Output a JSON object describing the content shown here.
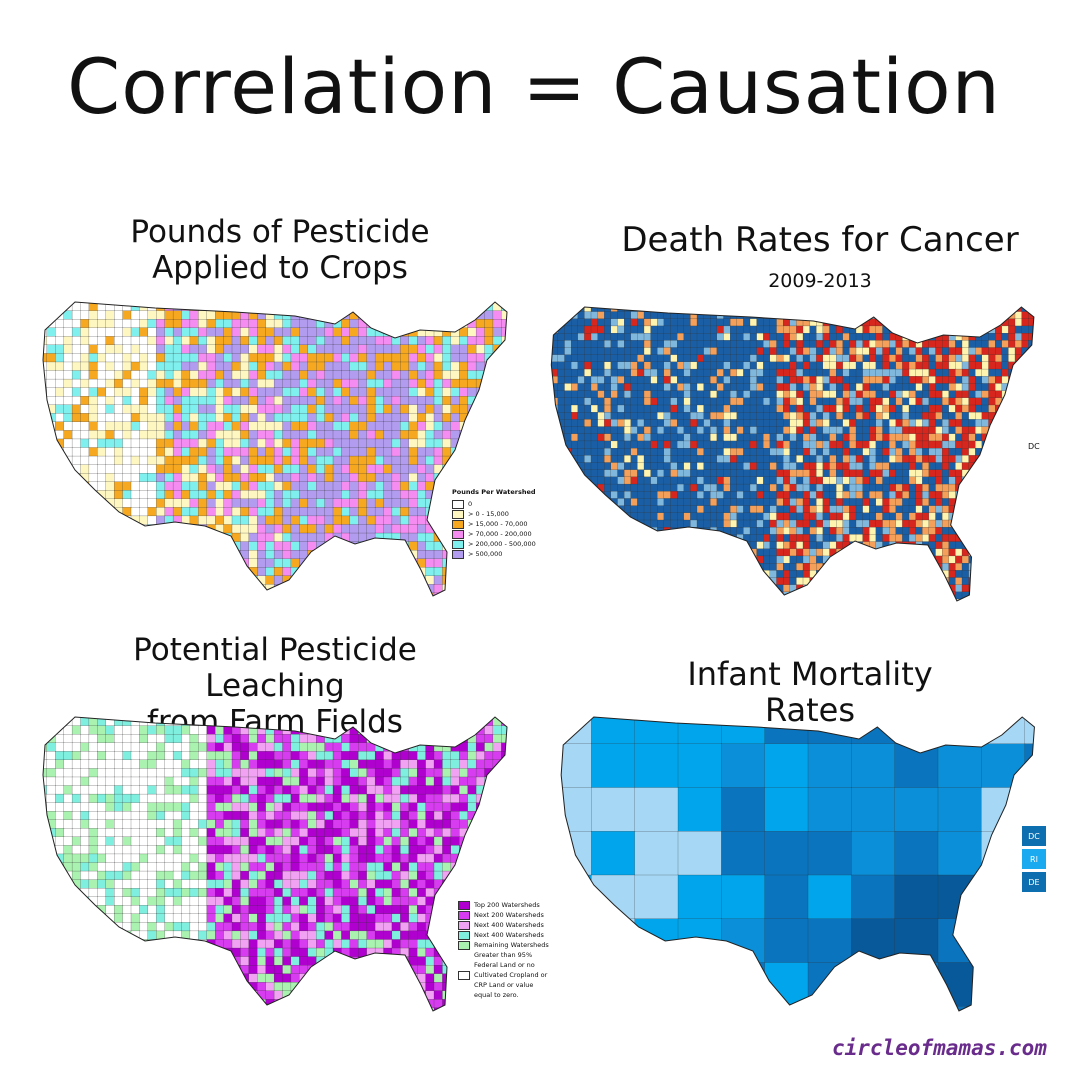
{
  "title": "Correlation = Causation",
  "panels": {
    "pesticide": {
      "title_line1": "Pounds of Pesticide",
      "title_line2": "Applied to Crops",
      "legend_title": "Pounds Per Watershed",
      "legend_items": [
        {
          "label": "0",
          "color": "#ffffff"
        },
        {
          "label": "> 0 - 15,000",
          "color": "#fff7c2"
        },
        {
          "label": "> 15,000 - 70,000",
          "color": "#f6a821"
        },
        {
          "label": "> 70,000 - 200,000",
          "color": "#f58cf2"
        },
        {
          "label": "> 200,000 - 500,000",
          "color": "#7ff0ee"
        },
        {
          "label": "> 500,000",
          "color": "#b29cf0"
        }
      ]
    },
    "cancer": {
      "title": "Death Rates for Cancer",
      "subtitle": "2009-2013",
      "dc_label": "DC",
      "colors": [
        "#1a5fa6",
        "#7fb7dd",
        "#fff3b0",
        "#f4a05a",
        "#d7261e"
      ]
    },
    "leaching": {
      "title_line1": "Potential Pesticide Leaching",
      "title_line2": "from Farm Fields",
      "legend_items": [
        {
          "label": "Top 200 Watersheds",
          "color": "#b000d0"
        },
        {
          "label": "Next 200 Watersheds",
          "color": "#d83cf0"
        },
        {
          "label": "Next 400 Watersheds",
          "color": "#f2a2f2"
        },
        {
          "label": "Next 400 Watersheds",
          "color": "#7ff0e0"
        },
        {
          "label": "Remaining Watersheds",
          "color": "#aaf2b0"
        },
        {
          "label": "Greater than 95% Federal Land or no Cultivated Cropland or CRP Land or value equal to zero.",
          "color": "#ffffff"
        }
      ]
    },
    "infant": {
      "title": "Infant Mortality Rates",
      "small_states": [
        {
          "label": "DC",
          "color": "#0e6fb0"
        },
        {
          "label": "RI",
          "color": "#19aaf0"
        },
        {
          "label": "DE",
          "color": "#0e6fb0"
        }
      ],
      "colors": [
        "#a6d8f6",
        "#00a5ec",
        "#0a8fd8",
        "#0a74be",
        "#07599a"
      ]
    }
  },
  "credit": "circleofmamas.com"
}
